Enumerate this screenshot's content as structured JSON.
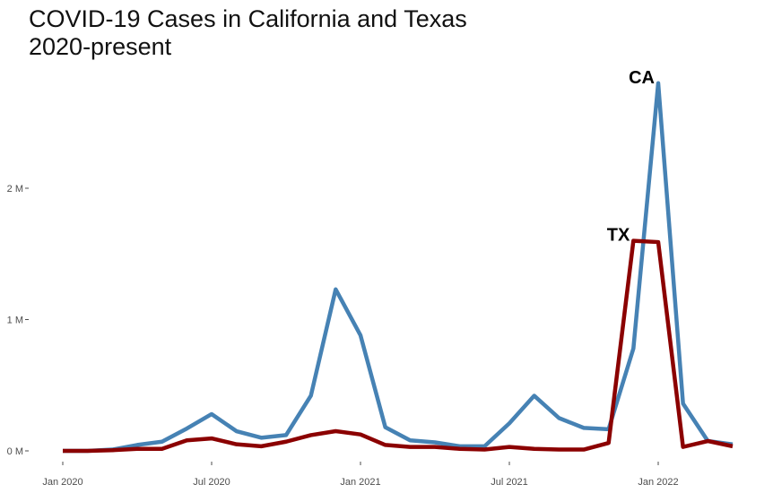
{
  "chart_data": {
    "type": "line",
    "title_line1": "COVID-19 Cases in California and Texas",
    "title_line2": "2020-present",
    "xlabel": "",
    "ylabel": "",
    "x": [
      "2020-01",
      "2020-02",
      "2020-03",
      "2020-04",
      "2020-05",
      "2020-06",
      "2020-07",
      "2020-08",
      "2020-09",
      "2020-10",
      "2020-11",
      "2020-12",
      "2021-01",
      "2021-02",
      "2021-03",
      "2021-04",
      "2021-05",
      "2021-06",
      "2021-07",
      "2021-08",
      "2021-09",
      "2021-10",
      "2021-11",
      "2021-12",
      "2022-01",
      "2022-02",
      "2022-03",
      "2022-04"
    ],
    "x_ticks": [
      {
        "date": "2020-01",
        "label": "Jan 2020"
      },
      {
        "date": "2020-07",
        "label": "Jul 2020"
      },
      {
        "date": "2021-01",
        "label": "Jan 2021"
      },
      {
        "date": "2021-07",
        "label": "Jul 2021"
      },
      {
        "date": "2022-01",
        "label": "Jan 2022"
      }
    ],
    "y_ticks": [
      {
        "value": 0,
        "label": "0 M"
      },
      {
        "value": 1000000,
        "label": "1 M"
      },
      {
        "value": 2000000,
        "label": "2 M"
      }
    ],
    "xlim": [
      "2020-01",
      "2022-04"
    ],
    "ylim": [
      0,
      2900000
    ],
    "grid": false,
    "legend": "none",
    "series": [
      {
        "name": "CA",
        "color": "#4682B4",
        "values": [
          0,
          0,
          10000,
          45000,
          70000,
          170000,
          280000,
          150000,
          100000,
          120000,
          420000,
          1230000,
          880000,
          180000,
          80000,
          65000,
          35000,
          35000,
          210000,
          420000,
          250000,
          175000,
          165000,
          780000,
          2800000,
          360000,
          75000,
          50000
        ]
      },
      {
        "name": "TX",
        "color": "#8B0000",
        "values": [
          0,
          0,
          5000,
          15000,
          15000,
          80000,
          95000,
          50000,
          35000,
          70000,
          120000,
          150000,
          125000,
          45000,
          30000,
          30000,
          15000,
          10000,
          30000,
          15000,
          10000,
          10000,
          60000,
          1600000,
          1590000,
          30000,
          75000,
          35000
        ]
      }
    ]
  }
}
